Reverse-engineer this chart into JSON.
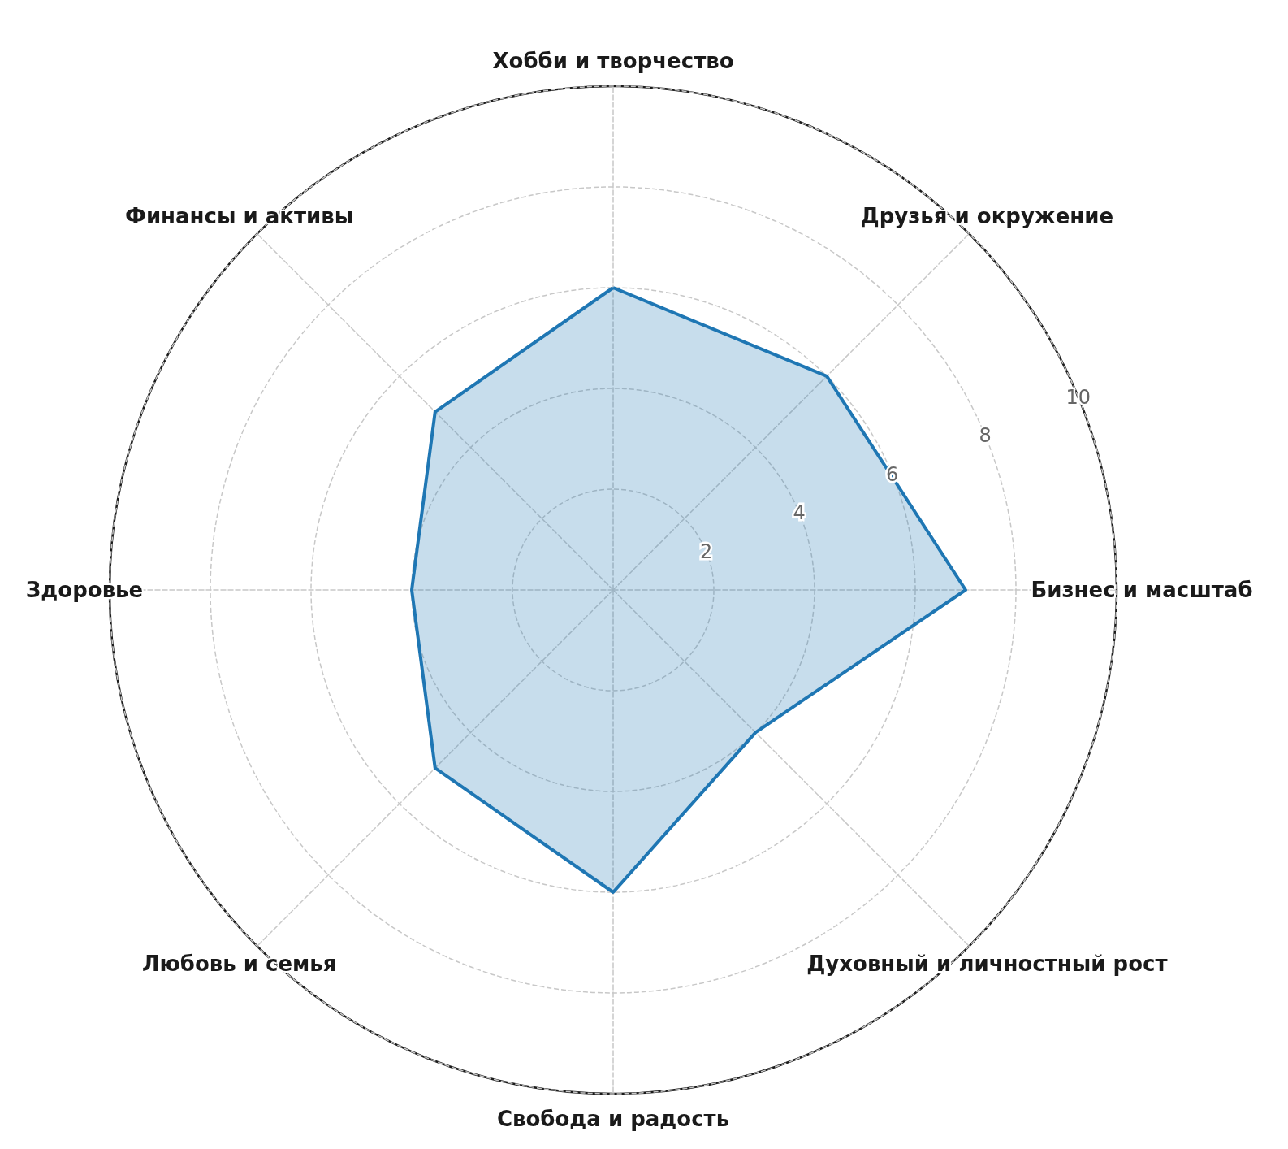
{
  "chart_data": {
    "type": "radar",
    "categories": [
      "Хобби и творчество",
      "Друзья и окружение",
      "Бизнес и масштаб",
      "Духовный и личностный рост",
      "Свобода и радость",
      "Любовь и семья",
      "Здоровье",
      "Финансы и активы"
    ],
    "series": [
      {
        "color": "#1f77b4",
        "values": [
          6,
          6,
          7,
          4,
          6,
          5,
          4,
          5
        ]
      }
    ],
    "ylim": [
      0,
      10
    ],
    "yticks": [
      2,
      4,
      6,
      8,
      10
    ],
    "grid": true,
    "marker": "none",
    "line_style": "solid"
  }
}
